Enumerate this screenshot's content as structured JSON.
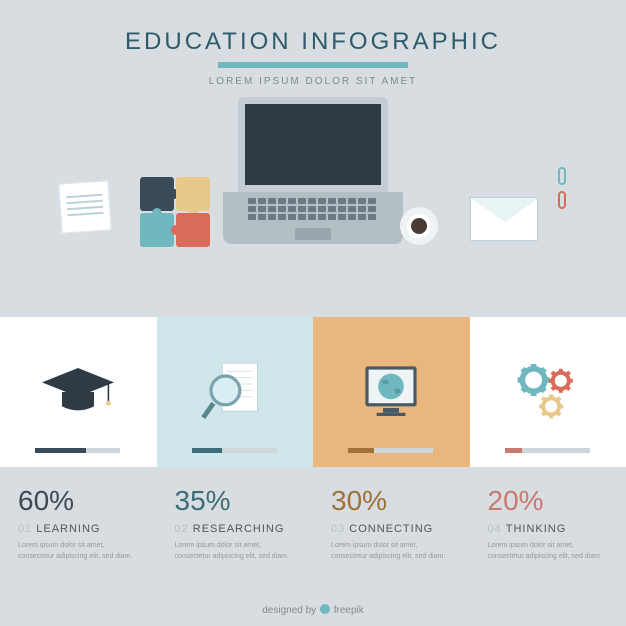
{
  "colors": {
    "page_bg": "#d7dde0",
    "title": "#2d5b6b",
    "subtitle": "#7d8a90",
    "accent_rule": "#6fb8bf",
    "laptop_frame": "#c4cdd3",
    "laptop_screen": "#2e3b45",
    "laptop_body": "#b4bec5",
    "trackpad": "#9aa6ad",
    "note_bg": "#ffffff",
    "note_line": "#bcd2d9",
    "puzzle": [
      "#3a4a56",
      "#e8c98a",
      "#6fb8bf",
      "#d96b5d"
    ],
    "coffee_saucer": "#eef3f5",
    "coffee_cup": "#ffffff",
    "coffee_liquid": "#4a3b33",
    "envelope_bg": "#ffffff",
    "clip1": "#6fb8bf",
    "clip2": "#d96b5d",
    "pencil_body": "#f2b84b",
    "pencil_eraser": "#d96b5d",
    "card_bg": [
      "#ffffff",
      "#cfe7ea",
      "#e9b77d",
      "#ffffff"
    ],
    "card_bar_track": "#cfd6d9",
    "card_bar_fill": [
      "#3a4a56",
      "#3d6d78",
      "#a07238",
      "#c97a70"
    ],
    "card_bar_width": [
      51,
      30,
      26,
      17
    ],
    "grad_cap": "#2e3b45",
    "magnifier_frame": "#7aa3ae",
    "magnifier_handle": "#5a8690",
    "device_frame": "#4a5a64",
    "globe": "#6fb8bf",
    "globe_land": "#5a9aa2",
    "gear1": "#6fb8bf",
    "gear2": "#d96b5d",
    "gear3": "#e8c98a",
    "pct": [
      "#3a4a56",
      "#3d6d78",
      "#a07238",
      "#c97a70"
    ],
    "stat_num": "#b8c2c7",
    "stat_label": "#555"
  },
  "header": {
    "title": "EDUCATION INFOGRAPHIC",
    "subtitle": "LOREM IPSUM DOLOR SIT AMET"
  },
  "stats": [
    {
      "pct": "60%",
      "num": "01",
      "label": "LEARNING",
      "body": "Lorem ipsum dolor sit amet, consectetur adipiscing elit, sed diam."
    },
    {
      "pct": "35%",
      "num": "02",
      "label": "RESEARCHING",
      "body": "Lorem ipsum dolor sit amet, consectetur adipiscing elit, sed diam."
    },
    {
      "pct": "30%",
      "num": "03",
      "label": "CONNECTING",
      "body": "Lorem ipsum dolor sit amet, consectetur adipiscing elit, sed diam."
    },
    {
      "pct": "20%",
      "num": "04",
      "label": "THINKING",
      "body": "Lorem ipsum dolor sit amet, consectetur adipiscing elit, sed diam."
    }
  ],
  "footer": {
    "text_before": "designed by ",
    "text_after": " freepik"
  }
}
